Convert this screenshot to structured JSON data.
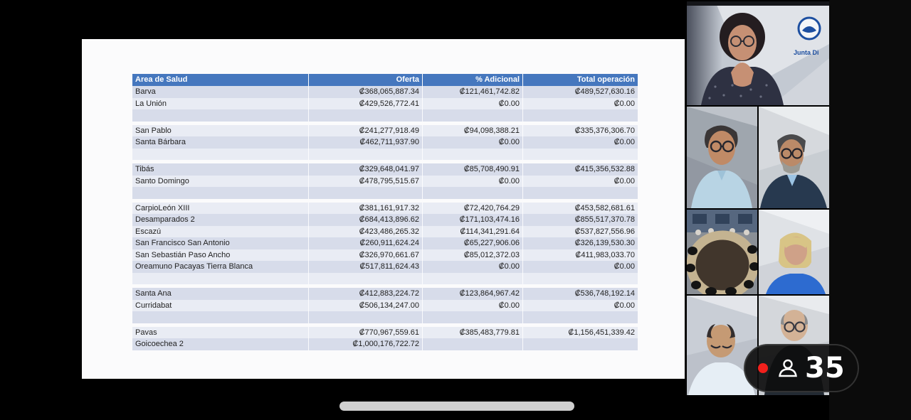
{
  "meeting": {
    "participant_count": "35",
    "badge_icons": [
      "record-dot",
      "person-icon"
    ]
  },
  "shared_screen": {
    "table": {
      "headers": [
        "Area de Salud",
        "Oferta",
        "% Adicional",
        "Total operación"
      ],
      "rows": [
        {
          "type": "data",
          "shade": "dark",
          "area": "Barva",
          "oferta": "₡368,065,887.34",
          "adicional": "₡121,461,742.82",
          "total": "₡489,527,630.16"
        },
        {
          "type": "data",
          "shade": "light",
          "area": "La Unión",
          "oferta": "₡429,526,772.41",
          "adicional": "₡0.00",
          "total": "₡0.00"
        },
        {
          "type": "data",
          "shade": "dark",
          "area": "",
          "oferta": "",
          "adicional": "",
          "total": ""
        },
        {
          "type": "gap"
        },
        {
          "type": "data",
          "shade": "light",
          "area": "San Pablo",
          "oferta": "₡241,277,918.49",
          "adicional": "₡94,098,388.21",
          "total": "₡335,376,306.70"
        },
        {
          "type": "data",
          "shade": "dark",
          "area": "Santa Bárbara",
          "oferta": "₡462,711,937.90",
          "adicional": "₡0.00",
          "total": "₡0.00"
        },
        {
          "type": "data",
          "shade": "light",
          "area": "",
          "oferta": "",
          "adicional": "",
          "total": ""
        },
        {
          "type": "gap"
        },
        {
          "type": "data",
          "shade": "dark",
          "area": "Tibás",
          "oferta": "₡329,648,041.97",
          "adicional": "₡85,708,490.91",
          "total": "₡415,356,532.88"
        },
        {
          "type": "data",
          "shade": "light",
          "area": "Santo Domingo",
          "oferta": "₡478,795,515.67",
          "adicional": "₡0.00",
          "total": "₡0.00"
        },
        {
          "type": "data",
          "shade": "dark",
          "area": "",
          "oferta": "",
          "adicional": "",
          "total": ""
        },
        {
          "type": "gap"
        },
        {
          "type": "data",
          "shade": "light",
          "area": "CarpioLeón XIII",
          "oferta": "₡381,161,917.32",
          "adicional": "₡72,420,764.29",
          "total": "₡453,582,681.61"
        },
        {
          "type": "data",
          "shade": "dark",
          "area": "Desamparados 2",
          "oferta": "₡684,413,896.62",
          "adicional": "₡171,103,474.16",
          "total": "₡855,517,370.78"
        },
        {
          "type": "data",
          "shade": "light",
          "area": "Escazú",
          "oferta": "₡423,486,265.32",
          "adicional": "₡114,341,291.64",
          "total": "₡537,827,556.96"
        },
        {
          "type": "data",
          "shade": "dark",
          "area": "San Francisco San Antonio",
          "oferta": "₡260,911,624.24",
          "adicional": "₡65,227,906.06",
          "total": "₡326,139,530.30"
        },
        {
          "type": "data",
          "shade": "light",
          "area": "San Sebastián Paso Ancho",
          "oferta": "₡326,970,661.67",
          "adicional": "₡85,012,372.03",
          "total": "₡411,983,033.70"
        },
        {
          "type": "data",
          "shade": "dark",
          "area": "Oreamuno Pacayas Tierra Blanca",
          "oferta": "₡517,811,624.43",
          "adicional": "₡0.00",
          "total": "₡0.00"
        },
        {
          "type": "data",
          "shade": "light",
          "area": "",
          "oferta": "",
          "adicional": "",
          "total": ""
        },
        {
          "type": "gap"
        },
        {
          "type": "data",
          "shade": "dark",
          "area": "Santa Ana",
          "oferta": "₡412,883,224.72",
          "adicional": "₡123,864,967.42",
          "total": "₡536,748,192.14"
        },
        {
          "type": "data",
          "shade": "light",
          "area": "Curridabat",
          "oferta": "₡506,134,247.00",
          "adicional": "₡0.00",
          "total": "₡0.00"
        },
        {
          "type": "data",
          "shade": "dark",
          "area": "",
          "oferta": "",
          "adicional": "",
          "total": ""
        },
        {
          "type": "gap"
        },
        {
          "type": "data",
          "shade": "light",
          "area": "Pavas",
          "oferta": "₡770,967,559.61",
          "adicional": "₡385,483,779.81",
          "total": "₡1,156,451,339.42"
        },
        {
          "type": "data",
          "shade": "dark",
          "area": "Goicoechea 2",
          "oferta": "₡1,000,176,722.72",
          "adicional": "",
          "total": ""
        }
      ]
    }
  },
  "video_panel": {
    "logo_caption": "Junta Di",
    "participants": [
      {
        "id": 1,
        "desc": "woman with glasses, hands clasped, institutional logo backdrop"
      },
      {
        "id": 2,
        "desc": "man with glasses, light blue shirt"
      },
      {
        "id": 3,
        "desc": "man with glasses and gray beard, navy suit"
      },
      {
        "id": 4,
        "desc": "boardroom with oval conference table"
      },
      {
        "id": 5,
        "desc": "blonde woman, blue top"
      },
      {
        "id": 6,
        "desc": "man with glasses looking down, light shirt"
      },
      {
        "id": 7,
        "desc": "balding man with glasses, dark suit"
      }
    ]
  },
  "colors": {
    "table_header_blue": "#4577be",
    "row_shade_dark": "#d7dcea",
    "row_shade_light": "#e9ecf4",
    "badge_red": "#f2201c",
    "badge_background": "#0e0e0e",
    "logo_blue": "#1d4fa0"
  }
}
